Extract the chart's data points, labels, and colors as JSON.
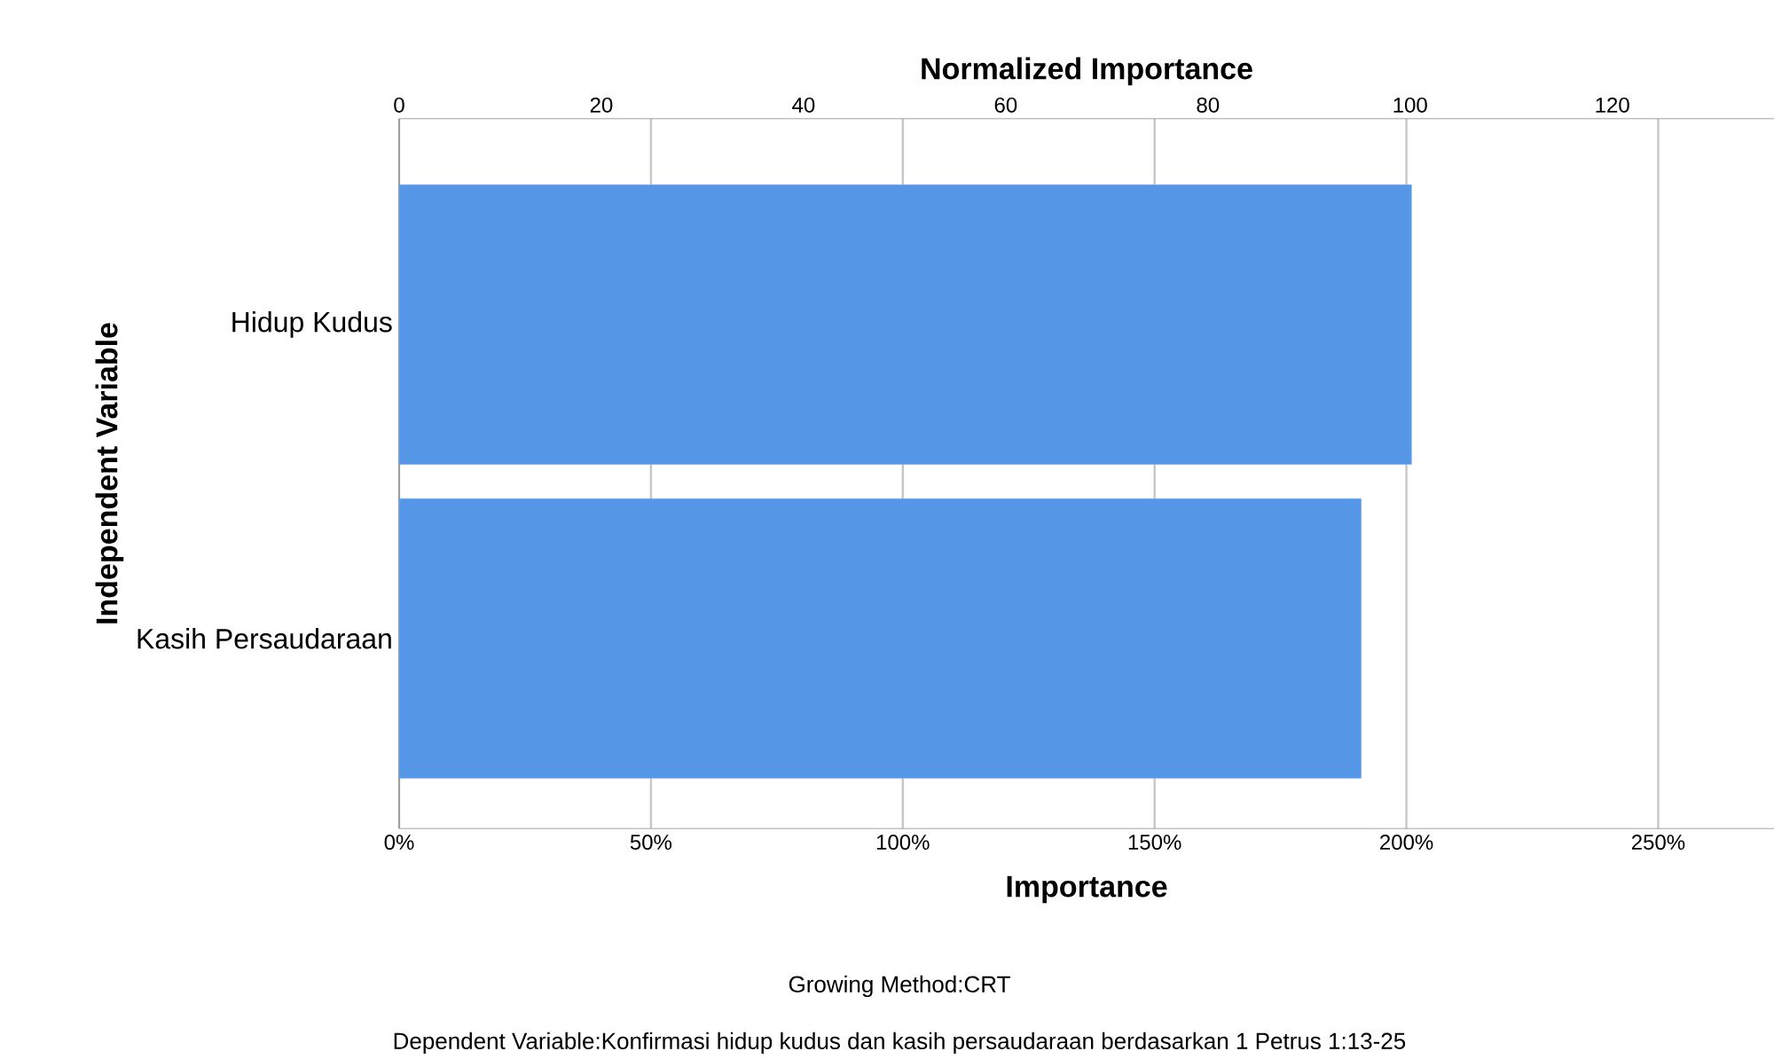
{
  "chart_data": {
    "type": "bar",
    "orientation": "horizontal",
    "categories": [
      "Hidup Kudus",
      "Kasih Persaudaraan"
    ],
    "values": [
      201,
      191
    ],
    "color": "#5596e6",
    "xlabel": "Importance",
    "ylabel": "Independent Variable",
    "x2label": "Normalized Importance",
    "xlim": [
      0,
      273
    ],
    "xticks": [
      {
        "value": 0,
        "label": "0%"
      },
      {
        "value": 50,
        "label": "50%"
      },
      {
        "value": 100,
        "label": "100%"
      },
      {
        "value": 150,
        "label": "150%"
      },
      {
        "value": 200,
        "label": "200%"
      },
      {
        "value": 250,
        "label": "250%"
      }
    ],
    "x2lim": [
      0,
      136
    ],
    "x2ticks": [
      0,
      20,
      40,
      60,
      80,
      100,
      120
    ],
    "grid": "x",
    "annotations": [
      "Growing Method:CRT",
      "Dependent Variable:Konfirmasi hidup kudus dan kasih persaudaraan berdasarkan 1 Petrus 1:13-25"
    ]
  }
}
